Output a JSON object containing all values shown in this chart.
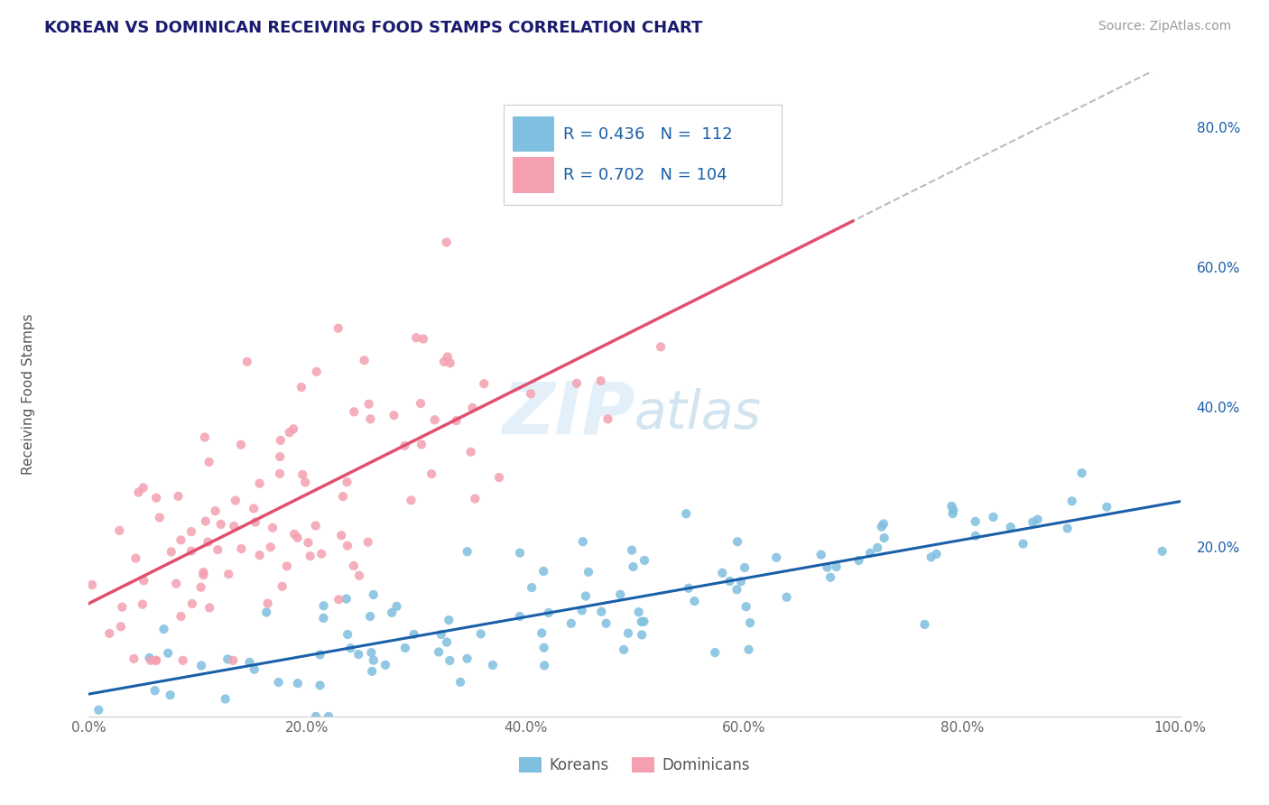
{
  "title": "KOREAN VS DOMINICAN RECEIVING FOOD STAMPS CORRELATION CHART",
  "source": "Source: ZipAtlas.com",
  "ylabel": "Receiving Food Stamps",
  "watermark": "ZIPatlas",
  "korean_R": 0.436,
  "korean_N": 112,
  "dominican_R": 0.702,
  "dominican_N": 104,
  "korean_color": "#7fbfdf",
  "dominican_color": "#f4a0b0",
  "korean_line_color": "#1a5fa8",
  "dominican_line_color": "#e05070",
  "background_color": "#ffffff",
  "grid_color": "#c8d8ea",
  "title_color": "#1a1a6e",
  "source_color": "#999999",
  "legend_text_color": "#1a5fa8",
  "xlim": [
    0.0,
    1.0
  ],
  "ylim": [
    -0.04,
    0.88
  ],
  "korean_line_x0": 0.0,
  "korean_line_y0": -0.01,
  "korean_line_x1": 1.0,
  "korean_line_y1": 0.28,
  "dominican_line_x0": 0.0,
  "dominican_line_y0": 0.15,
  "dominican_line_x1": 0.7,
  "dominican_line_y1": 0.65,
  "dashed_line_x0": 0.68,
  "dashed_line_y0": 0.62,
  "dashed_line_x1": 1.0,
  "dashed_line_y1": 0.78,
  "right_y_ticks": [
    0.2,
    0.4,
    0.6,
    0.8
  ],
  "right_y_labels": [
    "20.0%",
    "40.0%",
    "60.0%",
    "80.0%"
  ],
  "x_ticks": [
    0.0,
    0.2,
    0.4,
    0.6,
    0.8,
    1.0
  ],
  "x_labels": [
    "0.0%",
    "20.0%",
    "40.0%",
    "60.0%",
    "80.0%",
    "100.0%"
  ]
}
